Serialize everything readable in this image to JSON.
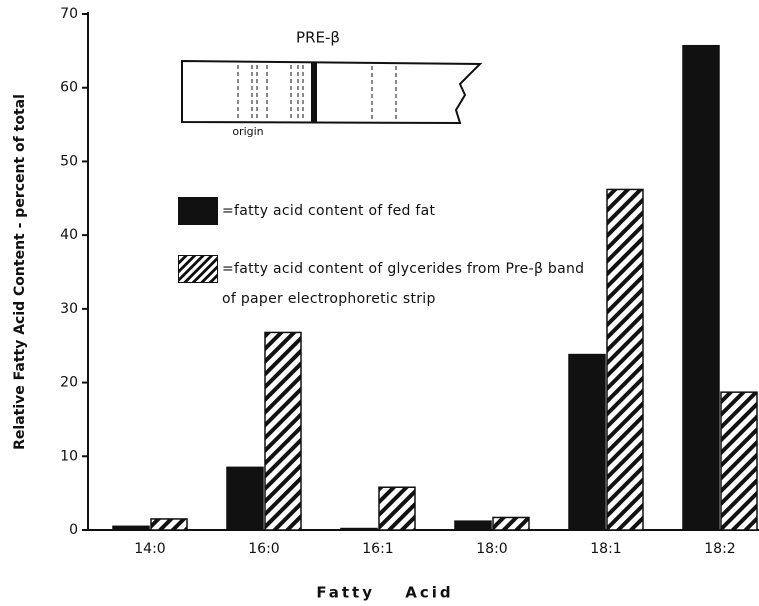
{
  "chart_data": {
    "type": "bar",
    "title": "",
    "x_label": "Fatty Acid",
    "y_label": "Relative Fatty Acid Content - percent of total",
    "categories": [
      "14:0",
      "16:0",
      "16:1",
      "18:0",
      "18:1",
      "18:2"
    ],
    "series": [
      {
        "name": "=fatty acid content of fed fat",
        "color": "#111111",
        "hatch": false,
        "values": [
          0.5,
          8.5,
          0.2,
          1.2,
          23.8,
          65.7
        ]
      },
      {
        "name": "=fatty acid content of glycerides from Pre-β band of paper electrophoretic strip",
        "color": "#111111",
        "hatch": true,
        "values": [
          1.5,
          26.8,
          5.8,
          1.7,
          46.2,
          18.7
        ]
      }
    ],
    "ylim": [
      0,
      70
    ],
    "yticks": [
      0,
      10,
      20,
      30,
      40,
      50,
      60,
      70
    ],
    "inset": {
      "title": "PRE-β",
      "label": "origin"
    }
  }
}
